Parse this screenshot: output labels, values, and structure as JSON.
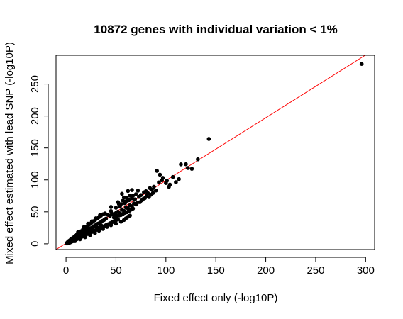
{
  "chart_data": {
    "type": "scatter",
    "title": "10872 genes with individual variation < 1%",
    "xlabel": "Fixed effect only (-log10P)",
    "ylabel": "Mixed effect estimated with lead SNP (-log10P)",
    "xlim": [
      -10,
      309
    ],
    "ylim": [
      -9,
      295
    ],
    "x_ticks": [
      0,
      50,
      100,
      150,
      200,
      250,
      300
    ],
    "y_ticks": [
      0,
      50,
      100,
      150,
      200,
      250
    ],
    "grid": false,
    "legend": "none",
    "point_color": "#000000",
    "fit_line": {
      "color": "#ff0000",
      "slope": 0.985,
      "intercept": 0
    },
    "series": [
      {
        "values": [
          {
            "x": 1,
            "y": 0.5
          },
          {
            "x": 2,
            "y": 1.8
          },
          {
            "x": 3,
            "y": 2.5
          },
          {
            "x": 4,
            "y": 3.3
          },
          {
            "x": 5,
            "y": 4.5
          },
          {
            "x": 6,
            "y": 5.2
          },
          {
            "x": 7,
            "y": 6.8
          },
          {
            "x": 8,
            "y": 7.1
          },
          {
            "x": 9,
            "y": 8.6
          },
          {
            "x": 10,
            "y": 9.4
          },
          {
            "x": 11,
            "y": 10.1
          },
          {
            "x": 12,
            "y": 11.7
          },
          {
            "x": 13,
            "y": 12.3
          },
          {
            "x": 14,
            "y": 13.8
          },
          {
            "x": 15,
            "y": 14.2
          },
          {
            "x": 16,
            "y": 15.6
          },
          {
            "x": 17,
            "y": 16.1
          },
          {
            "x": 18,
            "y": 17.9
          },
          {
            "x": 19,
            "y": 18.2
          },
          {
            "x": 20,
            "y": 19.5
          },
          {
            "x": 21,
            "y": 20.3
          },
          {
            "x": 22,
            "y": 21.8
          },
          {
            "x": 23,
            "y": 22.1
          },
          {
            "x": 24,
            "y": 23.6
          },
          {
            "x": 25,
            "y": 24.4
          },
          {
            "x": 26,
            "y": 25.1
          },
          {
            "x": 27,
            "y": 26.8
          },
          {
            "x": 28,
            "y": 27.2
          },
          {
            "x": 29,
            "y": 28.7
          },
          {
            "x": 30,
            "y": 29.3
          },
          {
            "x": 32,
            "y": 31.5
          },
          {
            "x": 34,
            "y": 33.2
          },
          {
            "x": 36,
            "y": 35.6
          },
          {
            "x": 38,
            "y": 37.1
          },
          {
            "x": 40,
            "y": 39.4
          },
          {
            "x": 3,
            "y": 4.5
          },
          {
            "x": 5,
            "y": 7.2
          },
          {
            "x": 7,
            "y": 9.5
          },
          {
            "x": 9,
            "y": 12.1
          },
          {
            "x": 11,
            "y": 14.8
          },
          {
            "x": 13,
            "y": 17.3
          },
          {
            "x": 15,
            "y": 19.6
          },
          {
            "x": 17,
            "y": 22.4
          },
          {
            "x": 19,
            "y": 24.7
          },
          {
            "x": 21,
            "y": 27.2
          },
          {
            "x": 23,
            "y": 29.8
          },
          {
            "x": 25,
            "y": 32.1
          },
          {
            "x": 27,
            "y": 34.5
          },
          {
            "x": 29,
            "y": 36.9
          },
          {
            "x": 31,
            "y": 39.4
          },
          {
            "x": 33,
            "y": 41.8
          },
          {
            "x": 35,
            "y": 44.1
          },
          {
            "x": 37,
            "y": 46.2
          },
          {
            "x": 39,
            "y": 47.5
          },
          {
            "x": 18,
            "y": 26.3
          },
          {
            "x": 22,
            "y": 31.5
          },
          {
            "x": 26,
            "y": 35.2
          },
          {
            "x": 30,
            "y": 40.1
          },
          {
            "x": 34,
            "y": 44.8
          },
          {
            "x": 12,
            "y": 18.2
          },
          {
            "x": 4,
            "y": 2.1
          },
          {
            "x": 6,
            "y": 3.8
          },
          {
            "x": 8,
            "y": 5.1
          },
          {
            "x": 10,
            "y": 6.5
          },
          {
            "x": 12,
            "y": 8.2
          },
          {
            "x": 14,
            "y": 9.4
          },
          {
            "x": 16,
            "y": 11.1
          },
          {
            "x": 18,
            "y": 12.6
          },
          {
            "x": 20,
            "y": 14.2
          },
          {
            "x": 22,
            "y": 15.5
          },
          {
            "x": 24,
            "y": 17.3
          },
          {
            "x": 26,
            "y": 18.6
          },
          {
            "x": 28,
            "y": 20.2
          },
          {
            "x": 30,
            "y": 21.5
          },
          {
            "x": 32,
            "y": 23.1
          },
          {
            "x": 34,
            "y": 24.6
          },
          {
            "x": 36,
            "y": 26.2
          },
          {
            "x": 38,
            "y": 27.4
          },
          {
            "x": 40,
            "y": 29.1
          },
          {
            "x": 42,
            "y": 30.5
          },
          {
            "x": 44,
            "y": 32.2
          },
          {
            "x": 46,
            "y": 33.6
          },
          {
            "x": 48,
            "y": 35.1
          },
          {
            "x": 50,
            "y": 36.8
          },
          {
            "x": 52,
            "y": 38.2
          },
          {
            "x": 9,
            "y": 4.2
          },
          {
            "x": 14,
            "y": 7.1
          },
          {
            "x": 19,
            "y": 10.3
          },
          {
            "x": 24,
            "y": 13.6
          },
          {
            "x": 29,
            "y": 16.8
          },
          {
            "x": 33,
            "y": 20.5
          },
          {
            "x": 37,
            "y": 23.2
          },
          {
            "x": 41,
            "y": 26.4
          },
          {
            "x": 45,
            "y": 29.1
          },
          {
            "x": 50,
            "y": 31.6
          },
          {
            "x": 55,
            "y": 34.5
          },
          {
            "x": 58,
            "y": 37.2
          },
          {
            "x": 60,
            "y": 39.8
          },
          {
            "x": 62,
            "y": 42.3
          },
          {
            "x": 64,
            "y": 44.1
          },
          {
            "x": 42,
            "y": 45.2
          },
          {
            "x": 44,
            "y": 43.8
          },
          {
            "x": 46,
            "y": 47.1
          },
          {
            "x": 48,
            "y": 45.6
          },
          {
            "x": 50,
            "y": 48.2
          },
          {
            "x": 52,
            "y": 50.1
          },
          {
            "x": 54,
            "y": 47.6
          },
          {
            "x": 56,
            "y": 53.2
          },
          {
            "x": 58,
            "y": 51.4
          },
          {
            "x": 60,
            "y": 56.8
          },
          {
            "x": 62,
            "y": 55.3
          },
          {
            "x": 64,
            "y": 60.1
          },
          {
            "x": 66,
            "y": 58.7
          },
          {
            "x": 68,
            "y": 63.2
          },
          {
            "x": 70,
            "y": 61.5
          },
          {
            "x": 53,
            "y": 44.2
          },
          {
            "x": 57,
            "y": 46.8
          },
          {
            "x": 59,
            "y": 48.5
          },
          {
            "x": 63,
            "y": 51.2
          },
          {
            "x": 65,
            "y": 53.4
          },
          {
            "x": 48,
            "y": 41.2
          },
          {
            "x": 51,
            "y": 43.5
          },
          {
            "x": 55,
            "y": 45.1
          },
          {
            "x": 61,
            "y": 49.3
          },
          {
            "x": 67,
            "y": 55.1
          },
          {
            "x": 45,
            "y": 51.2
          },
          {
            "x": 50,
            "y": 56.4
          },
          {
            "x": 55,
            "y": 62.1
          },
          {
            "x": 60,
            "y": 66.3
          },
          {
            "x": 58,
            "y": 72.5
          },
          {
            "x": 56,
            "y": 78.3
          },
          {
            "x": 62,
            "y": 82.6
          },
          {
            "x": 64,
            "y": 75.4
          },
          {
            "x": 66,
            "y": 71.2
          },
          {
            "x": 70,
            "y": 77.6
          },
          {
            "x": 72,
            "y": 83.1
          },
          {
            "x": 69,
            "y": 69.5
          },
          {
            "x": 73,
            "y": 73.4
          },
          {
            "x": 75,
            "y": 76.2
          },
          {
            "x": 78,
            "y": 80.5
          },
          {
            "x": 80,
            "y": 82.3
          },
          {
            "x": 82,
            "y": 79.1
          },
          {
            "x": 84,
            "y": 87.2
          },
          {
            "x": 86,
            "y": 84.6
          },
          {
            "x": 88,
            "y": 89.3
          },
          {
            "x": 74,
            "y": 65.2
          },
          {
            "x": 76,
            "y": 68.1
          },
          {
            "x": 79,
            "y": 71.5
          },
          {
            "x": 81,
            "y": 75.2
          },
          {
            "x": 83,
            "y": 73.1
          },
          {
            "x": 85,
            "y": 76.8
          },
          {
            "x": 87,
            "y": 79.5
          },
          {
            "x": 90,
            "y": 83.4
          },
          {
            "x": 71,
            "y": 63.5
          },
          {
            "x": 77,
            "y": 69.8
          },
          {
            "x": 45,
            "y": 57.6
          },
          {
            "x": 52,
            "y": 65.2
          },
          {
            "x": 53,
            "y": 62.1
          },
          {
            "x": 57,
            "y": 67.5
          },
          {
            "x": 61,
            "y": 71.2
          },
          {
            "x": 66,
            "y": 84.1
          },
          {
            "x": 54,
            "y": 58.3
          },
          {
            "x": 59,
            "y": 63.4
          },
          {
            "x": 63,
            "y": 68.2
          },
          {
            "x": 67,
            "y": 75.2
          },
          {
            "x": 93,
            "y": 96.1
          },
          {
            "x": 94,
            "y": 108.2
          },
          {
            "x": 96,
            "y": 99.4
          },
          {
            "x": 97,
            "y": 103.2
          },
          {
            "x": 100,
            "y": 95.1
          },
          {
            "x": 104,
            "y": 92.6
          },
          {
            "x": 107,
            "y": 104.5
          },
          {
            "x": 110,
            "y": 96.3
          },
          {
            "x": 113,
            "y": 101.2
          },
          {
            "x": 103,
            "y": 89.2
          },
          {
            "x": 91,
            "y": 114.2
          },
          {
            "x": 101,
            "y": 98.6
          },
          {
            "x": 115,
            "y": 124.3
          },
          {
            "x": 120,
            "y": 124.5
          },
          {
            "x": 122,
            "y": 118.6
          },
          {
            "x": 132,
            "y": 132.2
          },
          {
            "x": 126,
            "y": 117.3
          },
          {
            "x": 143,
            "y": 164.1
          },
          {
            "x": 296,
            "y": 281.5
          },
          {
            "x": 1,
            "y": 1.5
          },
          {
            "x": 2,
            "y": 3.2
          },
          {
            "x": 3,
            "y": 1.2
          },
          {
            "x": 4,
            "y": 5.6
          },
          {
            "x": 5,
            "y": 2.8
          },
          {
            "x": 6,
            "y": 7.9
          },
          {
            "x": 7,
            "y": 4.1
          },
          {
            "x": 8,
            "y": 10.4
          },
          {
            "x": 9,
            "y": 6.2
          },
          {
            "x": 10,
            "y": 12.8
          },
          {
            "x": 11,
            "y": 7.4
          },
          {
            "x": 13,
            "y": 9.6
          },
          {
            "x": 15,
            "y": 11.2
          },
          {
            "x": 17,
            "y": 13.1
          },
          {
            "x": 21,
            "y": 16.6
          },
          {
            "x": 23,
            "y": 18.9
          },
          {
            "x": 25,
            "y": 20.7
          },
          {
            "x": 27,
            "y": 22.3
          },
          {
            "x": 31,
            "y": 25.8
          },
          {
            "x": 35,
            "y": 29.2
          }
        ]
      }
    ]
  }
}
